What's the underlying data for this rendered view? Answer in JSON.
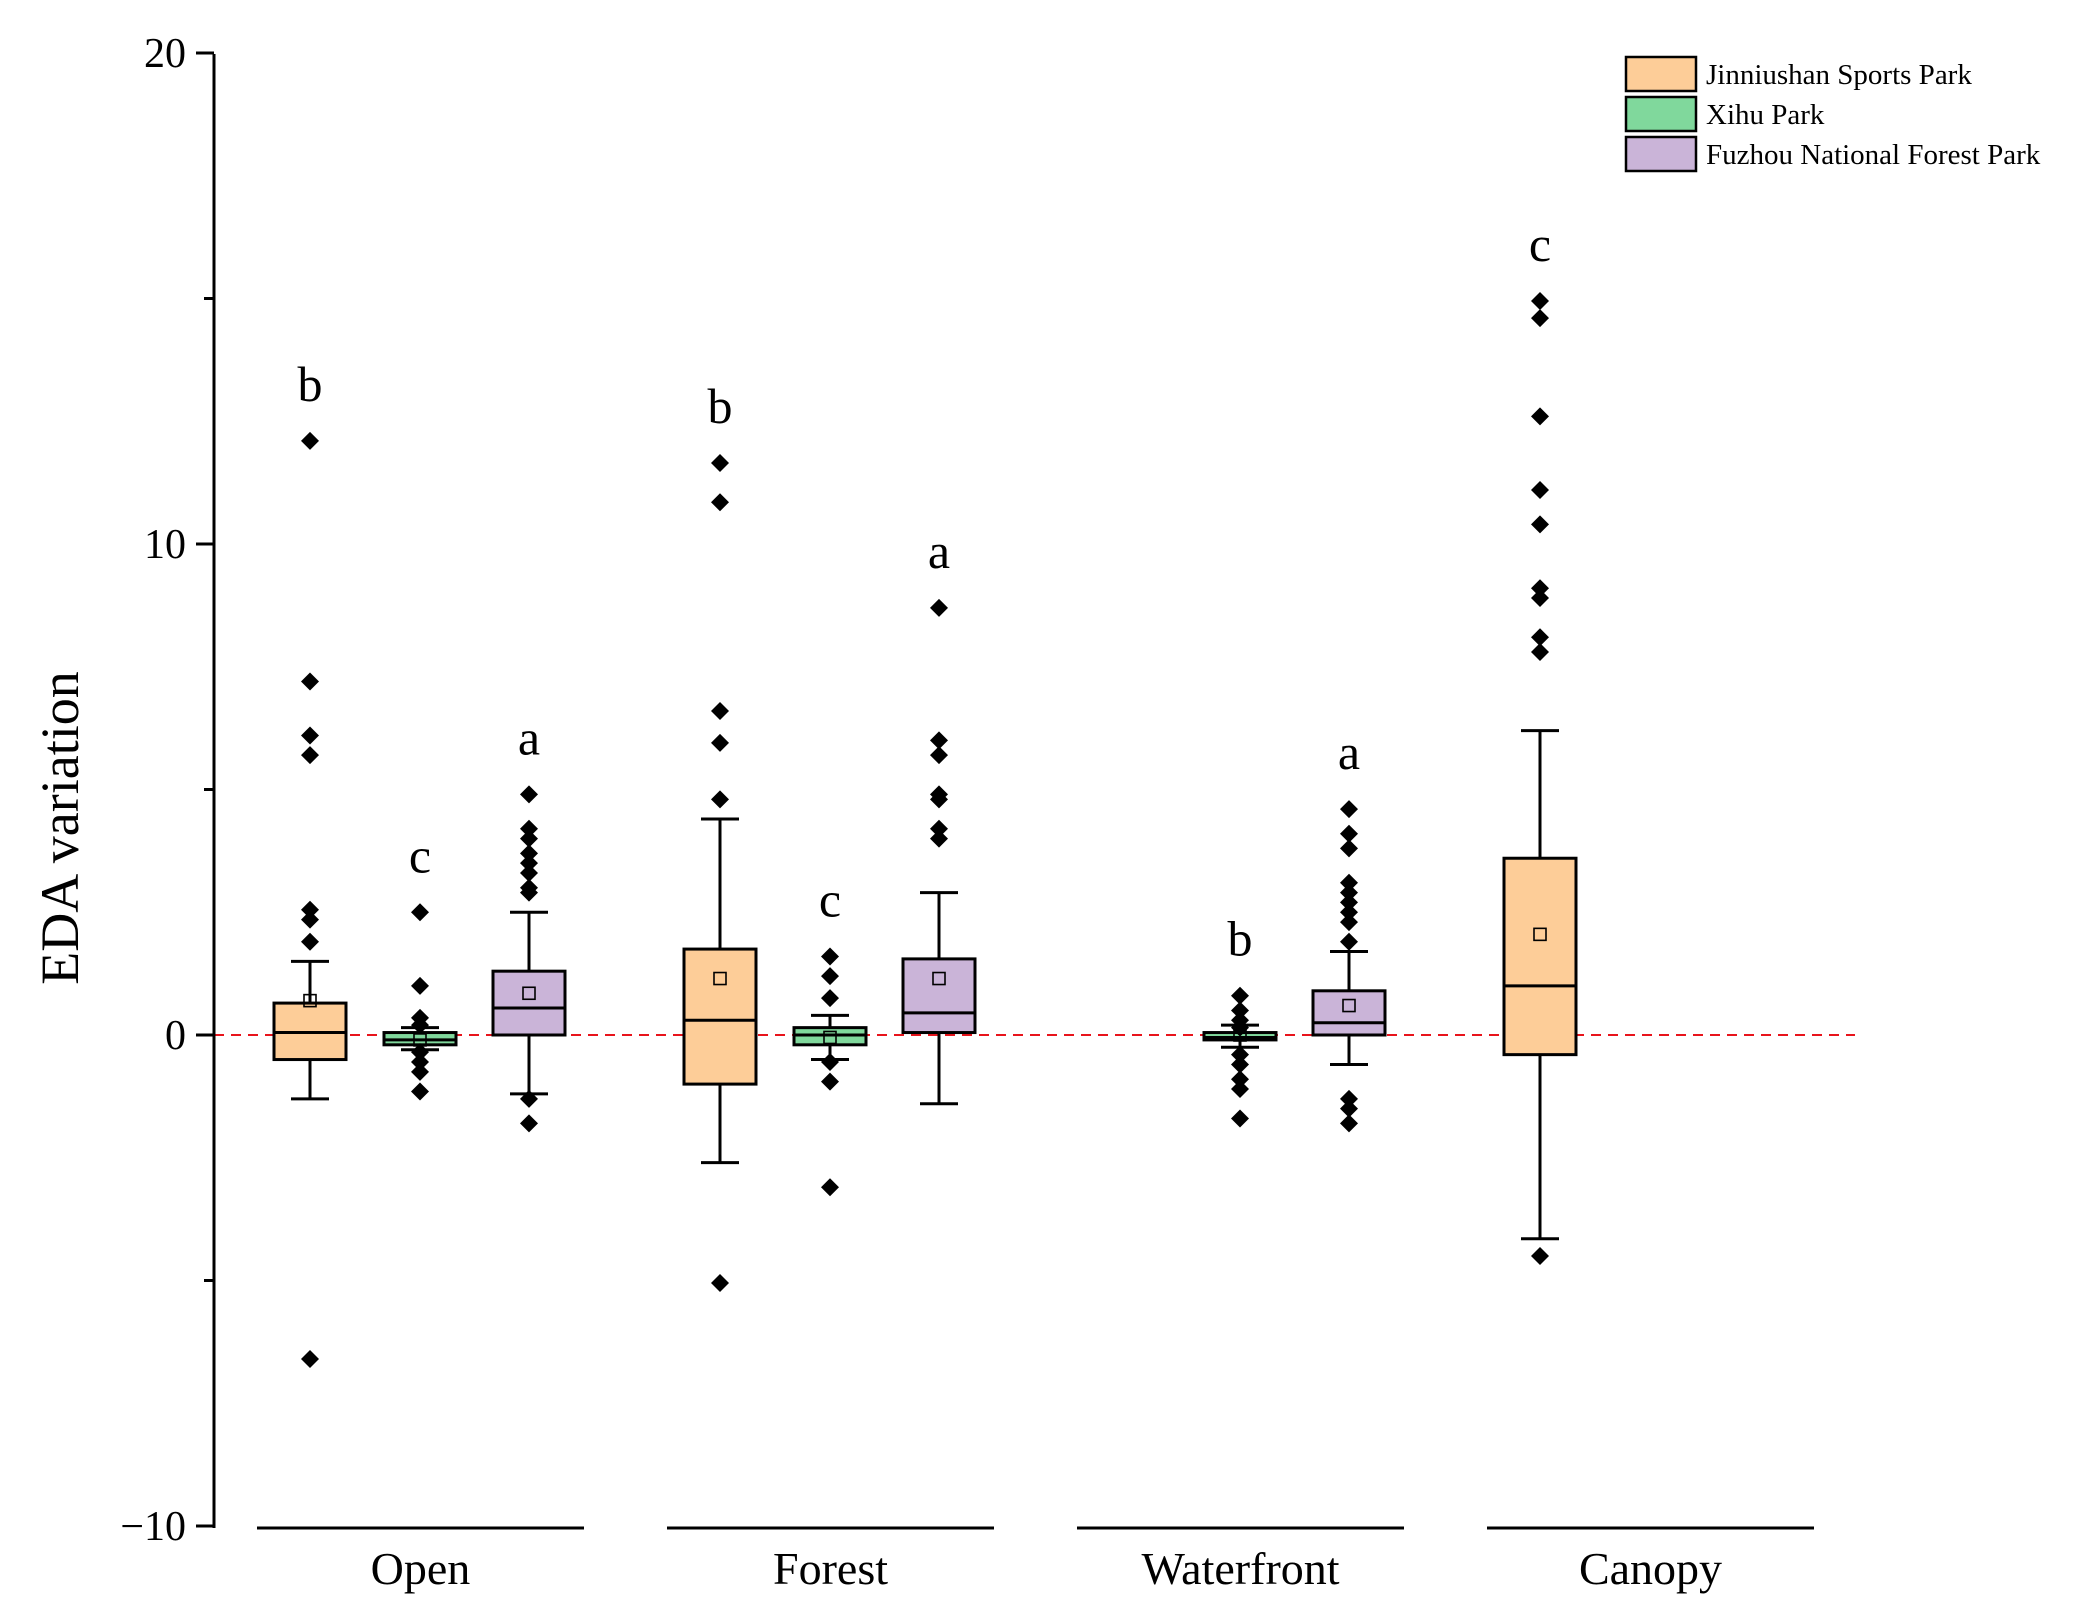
{
  "chart_data": {
    "type": "box",
    "ylabel": "EDA variation",
    "xlabel": "",
    "ylim": [
      -10,
      20
    ],
    "yticks": [
      -10,
      0,
      10,
      20
    ],
    "ytick_labels": [
      "−10",
      "0",
      "10",
      "20"
    ],
    "reference_line": {
      "y": 0,
      "color": "#e8141c",
      "style": "dashed"
    },
    "legend": {
      "position": "top-right",
      "entries": [
        {
          "name": "Jinniushan Sports Park",
          "color": "#fdcd98"
        },
        {
          "name": "Xihu Park",
          "color": "#80d89c"
        },
        {
          "name": "Fuzhou National Forest Park",
          "color": "#cab4d8"
        }
      ]
    },
    "groups": [
      {
        "label": "Open",
        "boxes": [
          {
            "series": 0,
            "q1": -0.5,
            "median": 0.05,
            "q3": 0.65,
            "whisker_low": -1.3,
            "whisker_high": 1.5,
            "mean": 0.7,
            "letter": "b",
            "outliers": [
              12.1,
              7.2,
              6.1,
              5.7,
              2.55,
              2.35,
              1.9,
              -6.6
            ]
          },
          {
            "series": 1,
            "q1": -0.2,
            "median": -0.1,
            "q3": 0.05,
            "whisker_low": -0.3,
            "whisker_high": 0.15,
            "mean": -0.1,
            "letter": "c",
            "outliers": [
              2.5,
              1.0,
              0.35,
              0.2,
              -0.35,
              -0.55,
              -0.75,
              -1.15
            ]
          },
          {
            "series": 2,
            "q1": 0.0,
            "median": 0.55,
            "q3": 1.3,
            "whisker_low": -1.2,
            "whisker_high": 2.5,
            "mean": 0.85,
            "letter": "a",
            "outliers": [
              4.9,
              4.2,
              4.0,
              3.7,
              3.5,
              3.3,
              3.0,
              2.9,
              -1.3,
              -1.8
            ]
          }
        ]
      },
      {
        "label": "Forest",
        "boxes": [
          {
            "series": 0,
            "q1": -1.0,
            "median": 0.3,
            "q3": 1.75,
            "whisker_low": -2.6,
            "whisker_high": 4.4,
            "mean": 1.15,
            "letter": "b",
            "outliers": [
              11.65,
              10.85,
              6.6,
              5.95,
              4.8,
              -5.05
            ]
          },
          {
            "series": 1,
            "q1": -0.2,
            "median": 0.0,
            "q3": 0.15,
            "whisker_low": -0.5,
            "whisker_high": 0.4,
            "mean": -0.05,
            "letter": "c",
            "outliers": [
              1.6,
              1.2,
              0.75,
              -0.55,
              -0.95,
              -3.1
            ]
          },
          {
            "series": 2,
            "q1": 0.05,
            "median": 0.45,
            "q3": 1.55,
            "whisker_low": -1.4,
            "whisker_high": 2.9,
            "mean": 1.15,
            "letter": "a",
            "outliers": [
              8.7,
              6.0,
              5.7,
              4.9,
              4.8,
              4.2,
              4.0
            ]
          }
        ]
      },
      {
        "label": "Waterfront",
        "boxes": [
          {
            "series": 1,
            "q1": -0.1,
            "median": -0.05,
            "q3": 0.05,
            "whisker_low": -0.25,
            "whisker_high": 0.2,
            "mean": 0.0,
            "letter": "b",
            "outliers": [
              0.8,
              0.5,
              0.3,
              0.15,
              -0.4,
              -0.6,
              -0.9,
              -1.1,
              -1.7
            ]
          },
          {
            "series": 2,
            "q1": 0.0,
            "median": 0.25,
            "q3": 0.9,
            "whisker_low": -0.6,
            "whisker_high": 1.7,
            "mean": 0.6,
            "letter": "a",
            "outliers": [
              4.6,
              4.1,
              3.8,
              3.1,
              2.9,
              2.7,
              2.5,
              2.3,
              1.9,
              -1.3,
              -1.5,
              -1.8
            ]
          }
        ]
      },
      {
        "label": "Canopy",
        "boxes": [
          {
            "series": 0,
            "q1": -0.4,
            "median": 1.0,
            "q3": 3.6,
            "whisker_low": -4.15,
            "whisker_high": 6.2,
            "mean": 2.05,
            "letter": "c",
            "outliers": [
              14.95,
              14.6,
              12.6,
              11.1,
              10.4,
              9.1,
              8.9,
              8.1,
              7.8,
              -4.5
            ]
          }
        ]
      }
    ]
  }
}
